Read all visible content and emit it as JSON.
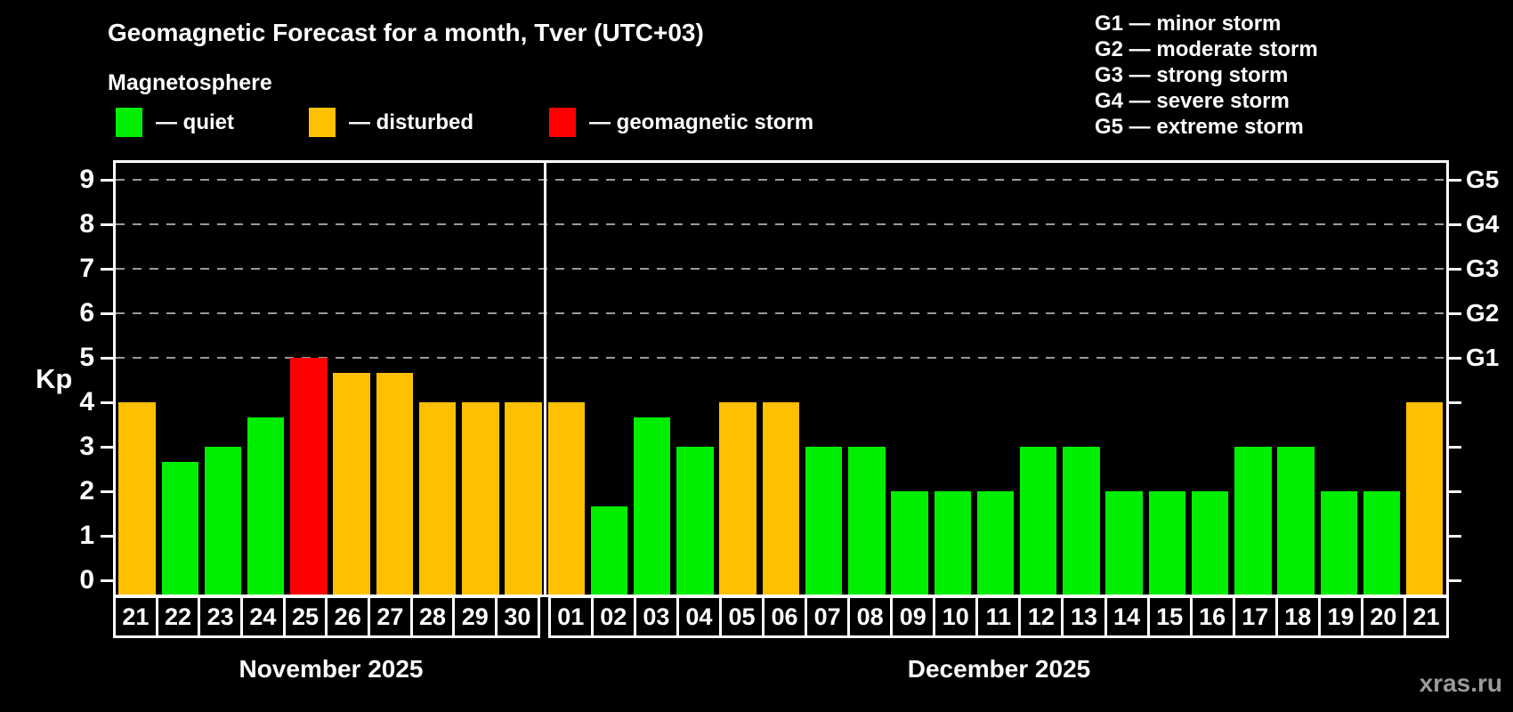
{
  "header": {
    "title": "Geomagnetic Forecast for a month, Tver (UTC+03)",
    "subtitle": "Magnetosphere",
    "legend": [
      {
        "status": "quiet",
        "label": "— quiet",
        "color": "#00ee00"
      },
      {
        "status": "disturbed",
        "label": "— disturbed",
        "color": "#ffc000"
      },
      {
        "status": "storm",
        "label": "— geomagnetic storm",
        "color": "#ff0000"
      }
    ],
    "g_scale": [
      "G1 — minor storm",
      "G2 — moderate storm",
      "G3 — strong storm",
      "G4 — severe storm",
      "G5 — extreme storm"
    ]
  },
  "chart_data": {
    "type": "bar",
    "ylabel": "Kp",
    "ylim": [
      0,
      9
    ],
    "yticks": [
      0,
      1,
      2,
      3,
      4,
      5,
      6,
      7,
      8,
      9
    ],
    "gridlines_at": [
      5,
      6,
      7,
      8,
      9
    ],
    "right_axis": [
      {
        "kp": 5,
        "label": "G1"
      },
      {
        "kp": 6,
        "label": "G2"
      },
      {
        "kp": 7,
        "label": "G3"
      },
      {
        "kp": 8,
        "label": "G4"
      },
      {
        "kp": 9,
        "label": "G5"
      }
    ],
    "colors": {
      "quiet": "#00ee00",
      "disturbed": "#ffc000",
      "storm": "#ff0000"
    },
    "months": [
      {
        "label": "November 2025",
        "days": [
          {
            "day": "21",
            "kp": 4.0,
            "status": "disturbed"
          },
          {
            "day": "22",
            "kp": 2.67,
            "status": "quiet"
          },
          {
            "day": "23",
            "kp": 3.0,
            "status": "quiet"
          },
          {
            "day": "24",
            "kp": 3.67,
            "status": "quiet"
          },
          {
            "day": "25",
            "kp": 5.0,
            "status": "storm"
          },
          {
            "day": "26",
            "kp": 4.67,
            "status": "disturbed"
          },
          {
            "day": "27",
            "kp": 4.67,
            "status": "disturbed"
          },
          {
            "day": "28",
            "kp": 4.0,
            "status": "disturbed"
          },
          {
            "day": "29",
            "kp": 4.0,
            "status": "disturbed"
          },
          {
            "day": "30",
            "kp": 4.0,
            "status": "disturbed"
          }
        ]
      },
      {
        "label": "December 2025",
        "days": [
          {
            "day": "01",
            "kp": 4.0,
            "status": "disturbed"
          },
          {
            "day": "02",
            "kp": 1.67,
            "status": "quiet"
          },
          {
            "day": "03",
            "kp": 3.67,
            "status": "quiet"
          },
          {
            "day": "04",
            "kp": 3.0,
            "status": "quiet"
          },
          {
            "day": "05",
            "kp": 4.0,
            "status": "disturbed"
          },
          {
            "day": "06",
            "kp": 4.0,
            "status": "disturbed"
          },
          {
            "day": "07",
            "kp": 3.0,
            "status": "quiet"
          },
          {
            "day": "08",
            "kp": 3.0,
            "status": "quiet"
          },
          {
            "day": "09",
            "kp": 2.0,
            "status": "quiet"
          },
          {
            "day": "10",
            "kp": 2.0,
            "status": "quiet"
          },
          {
            "day": "11",
            "kp": 2.0,
            "status": "quiet"
          },
          {
            "day": "12",
            "kp": 3.0,
            "status": "quiet"
          },
          {
            "day": "13",
            "kp": 3.0,
            "status": "quiet"
          },
          {
            "day": "14",
            "kp": 2.0,
            "status": "quiet"
          },
          {
            "day": "15",
            "kp": 2.0,
            "status": "quiet"
          },
          {
            "day": "16",
            "kp": 2.0,
            "status": "quiet"
          },
          {
            "day": "17",
            "kp": 3.0,
            "status": "quiet"
          },
          {
            "day": "18",
            "kp": 3.0,
            "status": "quiet"
          },
          {
            "day": "19",
            "kp": 2.0,
            "status": "quiet"
          },
          {
            "day": "20",
            "kp": 2.0,
            "status": "quiet"
          },
          {
            "day": "21",
            "kp": 4.0,
            "status": "disturbed"
          }
        ]
      }
    ]
  },
  "watermark": "xras.ru"
}
